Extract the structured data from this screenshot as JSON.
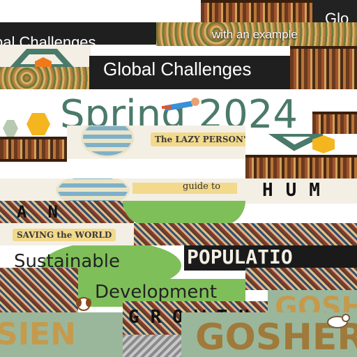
{
  "tiles": {
    "global_challenges_top": "Glo",
    "bal_challenges_left": "bal Challenges",
    "global_challenges_main": "Global Challenges",
    "with_example": "with an example",
    "spring_2024": "Spring 2024",
    "lazy_person": "The LAZY PERSON'S",
    "guide_to": "guide to",
    "saving_world": "SAVING the WORLD",
    "sustainable": "Sustainable",
    "development": "Development",
    "human": "HUM",
    "population": "POPULATIO",
    "growth": "GROWTH",
    "gosher": "GOSHER",
    "sien": "SIEN",
    "an": "AN"
  },
  "colors": {
    "teal": "#4a7a6a",
    "orange_hex": "#f07a1a",
    "yellow_hex": "#f4b51e",
    "sage": "#9ab79c",
    "banner": "#f2d98c",
    "green_circle": "#7fbf5a"
  }
}
